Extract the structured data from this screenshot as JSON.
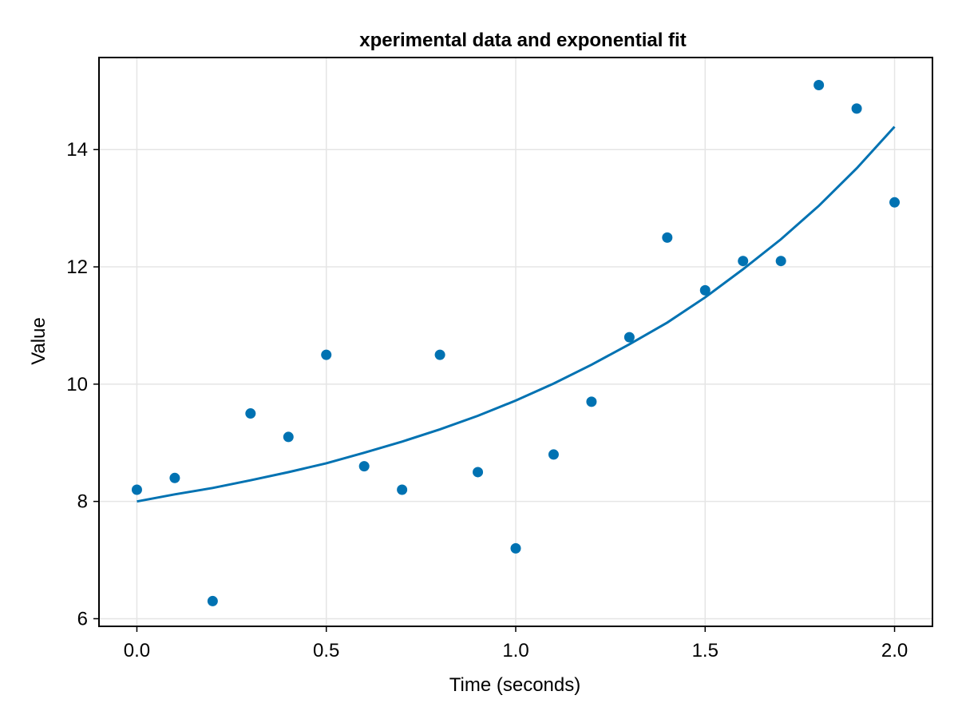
{
  "chart_data": {
    "type": "scatter",
    "title": "xperimental data and exponential fit",
    "xlabel": "Time (seconds)",
    "ylabel": "Value",
    "xlim": [
      -0.1,
      2.1
    ],
    "ylim": [
      5.87,
      15.57
    ],
    "xticks": [
      0.0,
      0.5,
      1.0,
      1.5,
      2.0
    ],
    "xtick_labels": [
      "0.0",
      "0.5",
      "1.0",
      "1.5",
      "2.0"
    ],
    "yticks": [
      6,
      8,
      10,
      12,
      14
    ],
    "ytick_labels": [
      "6",
      "8",
      "10",
      "12",
      "14"
    ],
    "grid": true,
    "colors": {
      "series": "#0072b2",
      "grid": "#e5e5e5",
      "frame": "#000000"
    },
    "series": [
      {
        "type": "scatter",
        "x": [
          0.0,
          0.1,
          0.2,
          0.3,
          0.4,
          0.5,
          0.6,
          0.7,
          0.8,
          0.9,
          1.0,
          1.1,
          1.2,
          1.3,
          1.4,
          1.5,
          1.6,
          1.7,
          1.8,
          1.9,
          2.0
        ],
        "y": [
          8.2,
          8.4,
          6.3,
          9.5,
          9.1,
          10.5,
          8.6,
          8.2,
          10.5,
          8.5,
          7.2,
          8.8,
          9.7,
          10.8,
          12.5,
          11.6,
          12.1,
          12.1,
          15.1,
          14.7,
          13.1
        ]
      },
      {
        "type": "line",
        "x": [
          0.0,
          0.1,
          0.2,
          0.3,
          0.4,
          0.5,
          0.6,
          0.7,
          0.8,
          0.9,
          1.0,
          1.1,
          1.2,
          1.3,
          1.4,
          1.5,
          1.6,
          1.7,
          1.8,
          1.9,
          2.0
        ],
        "y": [
          8.0,
          8.12,
          8.23,
          8.36,
          8.5,
          8.65,
          8.83,
          9.02,
          9.23,
          9.46,
          9.72,
          10.01,
          10.33,
          10.68,
          11.05,
          11.48,
          11.96,
          12.47,
          13.04,
          13.68,
          14.39
        ]
      }
    ]
  }
}
